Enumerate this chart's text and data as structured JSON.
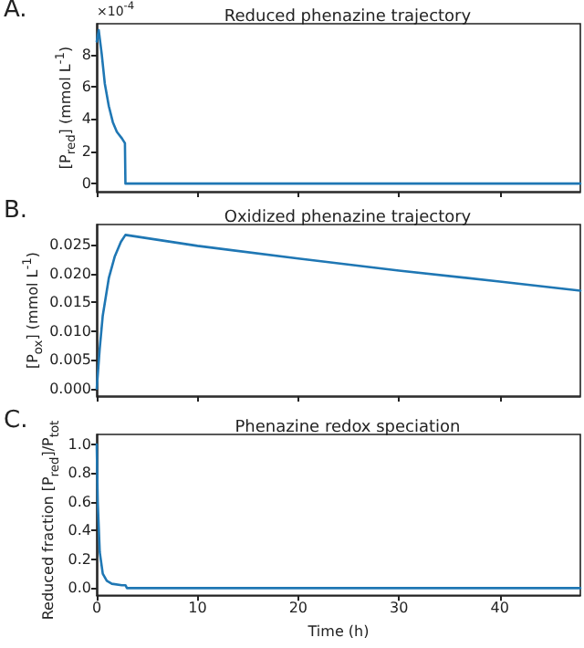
{
  "chart_data": [
    {
      "type": "line",
      "title": "Reduced phenazine trajectory",
      "ylabel": "[P$_{red}$] (mmol L$^{-1}$)",
      "annotations": [
        "A.",
        "×10$^{-4}$"
      ],
      "x": [
        0,
        0.2,
        0.5,
        0.8,
        1.2,
        1.6,
        2,
        2.5,
        2.8,
        2.85,
        10,
        20,
        30,
        40,
        48
      ],
      "series": [
        {
          "color": "#1f77b4",
          "values": [
            8.8,
            9.5,
            8,
            6.2,
            4.8,
            3.8,
            3.2,
            2.8,
            2.5,
            0,
            0,
            0,
            0,
            0,
            0
          ]
        }
      ],
      "xlim": [
        0,
        48
      ],
      "xticks": [
        0,
        10,
        20,
        30,
        40
      ],
      "ylim": [
        -0.5,
        9.9
      ],
      "yticks": [
        0,
        2,
        4,
        6,
        8
      ],
      "tick_labels": "y",
      "grid": false,
      "marker": "none",
      "line_style": "solid"
    },
    {
      "type": "line",
      "title": "Oxidized phenazine trajectory",
      "ylabel": "[P$_{ox}$] (mmol L$^{-1}$)",
      "annotations": [
        "B."
      ],
      "x": [
        0,
        0.3,
        0.6,
        1.2,
        1.8,
        2.4,
        2.85,
        10,
        20,
        30,
        40,
        48
      ],
      "series": [
        {
          "color": "#1f77b4",
          "values": [
            0,
            0.007,
            0.0127,
            0.0192,
            0.023,
            0.0255,
            0.0267,
            0.0248,
            0.0226,
            0.0205,
            0.0186,
            0.017
          ]
        }
      ],
      "xlim": [
        0,
        48
      ],
      "xticks": [
        0,
        10,
        20,
        30,
        40
      ],
      "ylim": [
        -0.0013,
        0.0285
      ],
      "yticks": [
        {
          "value": 0,
          "label": "0.000"
        },
        {
          "value": 0.005,
          "label": "0.005"
        },
        {
          "value": 0.01,
          "label": "0.010"
        },
        {
          "value": 0.015,
          "label": "0.015"
        },
        {
          "value": 0.02,
          "label": "0.020"
        },
        {
          "value": 0.025,
          "label": "0.025"
        }
      ],
      "tick_labels": "y",
      "grid": false,
      "marker": "none",
      "line_style": "solid"
    },
    {
      "type": "line",
      "title": "Phenazine redox speciation",
      "xlabel": "Time (h)",
      "ylabel": "Reduced fraction [P$_{red}$]/P$_{tot}$",
      "annotations": [
        "C."
      ],
      "x": [
        0,
        0.1,
        0.3,
        0.6,
        1,
        1.5,
        2.5,
        2.85,
        3,
        10,
        20,
        30,
        40,
        48
      ],
      "series": [
        {
          "color": "#1f77b4",
          "values": [
            1.0,
            0.6,
            0.25,
            0.1,
            0.05,
            0.03,
            0.02,
            0.02,
            0,
            0,
            0,
            0,
            0,
            0
          ]
        }
      ],
      "xlim": [
        0,
        48
      ],
      "xticks": [
        0,
        10,
        20,
        30,
        40
      ],
      "ylim": [
        -0.05,
        1.07
      ],
      "yticks": [
        {
          "value": 0,
          "label": "0.0"
        },
        {
          "value": 0.2,
          "label": "0.2"
        },
        {
          "value": 0.4,
          "label": "0.4"
        },
        {
          "value": 0.6,
          "label": "0.6"
        },
        {
          "value": 0.8,
          "label": "0.8"
        },
        {
          "value": 1.0,
          "label": "1.0"
        }
      ],
      "grid": false,
      "marker": "none",
      "line_style": "solid"
    }
  ]
}
